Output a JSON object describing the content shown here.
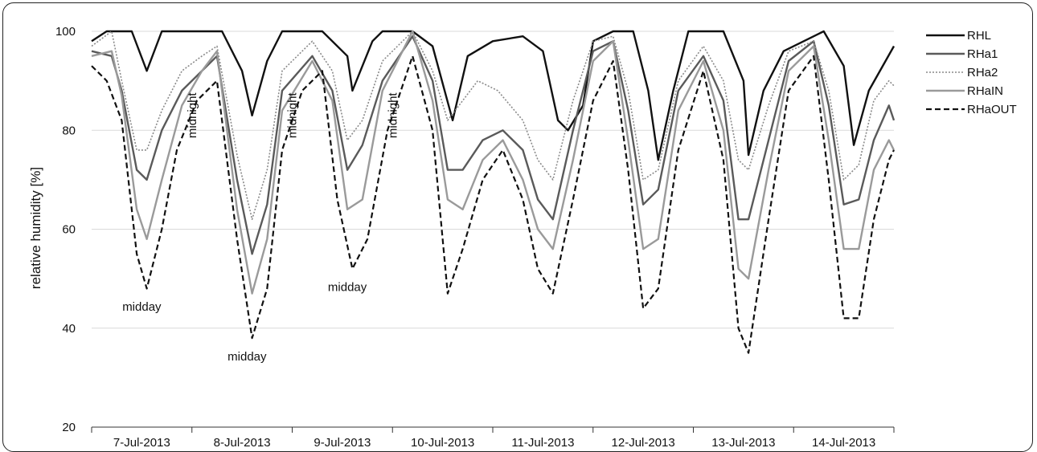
{
  "chart_data": {
    "type": "line",
    "title": "",
    "xlabel": "",
    "ylabel": "relative humidity [%]",
    "ylim": [
      20,
      100
    ],
    "yticks": [
      20,
      40,
      60,
      80,
      100
    ],
    "xlim": [
      0,
      8
    ],
    "x_tick_labels": [
      "7-Jul-2013",
      "8-Jul-2013",
      "9-Jul-2013",
      "10-Jul-2013",
      "11-Jul-2013",
      "12-Jul-2013",
      "13-Jul-2013",
      "14-Jul-2013"
    ],
    "grid": "horizontal",
    "legend_position": "right",
    "series": [
      {
        "name": "RHL",
        "color": "#111111",
        "style": "solid-thick",
        "points": [
          [
            0,
            98
          ],
          [
            0.15,
            100
          ],
          [
            0.4,
            100
          ],
          [
            0.55,
            92
          ],
          [
            0.7,
            100
          ],
          [
            1.3,
            100
          ],
          [
            1.5,
            92
          ],
          [
            1.6,
            83
          ],
          [
            1.75,
            94
          ],
          [
            1.9,
            100
          ],
          [
            2.3,
            100
          ],
          [
            2.55,
            95
          ],
          [
            2.6,
            88
          ],
          [
            2.8,
            98
          ],
          [
            2.9,
            100
          ],
          [
            3.2,
            100
          ],
          [
            3.4,
            97
          ],
          [
            3.6,
            82
          ],
          [
            3.75,
            95
          ],
          [
            4.0,
            98
          ],
          [
            4.3,
            99
          ],
          [
            4.5,
            96
          ],
          [
            4.65,
            82
          ],
          [
            4.75,
            80
          ],
          [
            4.9,
            85
          ],
          [
            5.0,
            98
          ],
          [
            5.2,
            100
          ],
          [
            5.4,
            100
          ],
          [
            5.55,
            88
          ],
          [
            5.65,
            74
          ],
          [
            5.8,
            88
          ],
          [
            5.95,
            100
          ],
          [
            6.3,
            100
          ],
          [
            6.5,
            90
          ],
          [
            6.55,
            75
          ],
          [
            6.7,
            88
          ],
          [
            6.9,
            96
          ],
          [
            7.3,
            100
          ],
          [
            7.5,
            93
          ],
          [
            7.6,
            77
          ],
          [
            7.75,
            88
          ],
          [
            8.0,
            97
          ]
        ]
      },
      {
        "name": "RHa1",
        "color": "#5a5a5a",
        "style": "solid-thick",
        "points": [
          [
            0,
            96
          ],
          [
            0.2,
            95
          ],
          [
            0.3,
            88
          ],
          [
            0.45,
            72
          ],
          [
            0.55,
            70
          ],
          [
            0.7,
            80
          ],
          [
            0.9,
            88
          ],
          [
            1.1,
            92
          ],
          [
            1.25,
            95
          ],
          [
            1.45,
            70
          ],
          [
            1.6,
            55
          ],
          [
            1.75,
            65
          ],
          [
            1.9,
            88
          ],
          [
            2.2,
            95
          ],
          [
            2.4,
            88
          ],
          [
            2.55,
            72
          ],
          [
            2.7,
            77
          ],
          [
            2.9,
            90
          ],
          [
            3.2,
            99
          ],
          [
            3.4,
            90
          ],
          [
            3.55,
            72
          ],
          [
            3.7,
            72
          ],
          [
            3.9,
            78
          ],
          [
            4.1,
            80
          ],
          [
            4.3,
            76
          ],
          [
            4.45,
            66
          ],
          [
            4.6,
            62
          ],
          [
            4.8,
            80
          ],
          [
            5.0,
            96
          ],
          [
            5.2,
            98
          ],
          [
            5.35,
            84
          ],
          [
            5.5,
            65
          ],
          [
            5.65,
            68
          ],
          [
            5.85,
            88
          ],
          [
            6.1,
            95
          ],
          [
            6.3,
            86
          ],
          [
            6.45,
            62
          ],
          [
            6.55,
            62
          ],
          [
            6.75,
            78
          ],
          [
            6.95,
            94
          ],
          [
            7.2,
            98
          ],
          [
            7.35,
            85
          ],
          [
            7.5,
            65
          ],
          [
            7.65,
            66
          ],
          [
            7.8,
            78
          ],
          [
            7.95,
            85
          ],
          [
            8.0,
            82
          ]
        ]
      },
      {
        "name": "RHa2",
        "color": "#8a8a8a",
        "style": "dotted",
        "points": [
          [
            0,
            97
          ],
          [
            0.2,
            100
          ],
          [
            0.3,
            90
          ],
          [
            0.45,
            76
          ],
          [
            0.55,
            76
          ],
          [
            0.7,
            84
          ],
          [
            0.9,
            92
          ],
          [
            1.1,
            95
          ],
          [
            1.25,
            97
          ],
          [
            1.45,
            75
          ],
          [
            1.6,
            62
          ],
          [
            1.75,
            72
          ],
          [
            1.9,
            92
          ],
          [
            2.2,
            98
          ],
          [
            2.4,
            92
          ],
          [
            2.55,
            78
          ],
          [
            2.7,
            82
          ],
          [
            2.9,
            94
          ],
          [
            3.2,
            100
          ],
          [
            3.4,
            92
          ],
          [
            3.55,
            82
          ],
          [
            3.7,
            86
          ],
          [
            3.85,
            90
          ],
          [
            4.05,
            88
          ],
          [
            4.3,
            82
          ],
          [
            4.45,
            74
          ],
          [
            4.6,
            70
          ],
          [
            4.8,
            86
          ],
          [
            5.0,
            98
          ],
          [
            5.2,
            99
          ],
          [
            5.35,
            88
          ],
          [
            5.5,
            70
          ],
          [
            5.65,
            72
          ],
          [
            5.85,
            90
          ],
          [
            6.1,
            97
          ],
          [
            6.3,
            90
          ],
          [
            6.45,
            74
          ],
          [
            6.55,
            72
          ],
          [
            6.75,
            85
          ],
          [
            6.95,
            96
          ],
          [
            7.2,
            98
          ],
          [
            7.35,
            88
          ],
          [
            7.5,
            70
          ],
          [
            7.65,
            73
          ],
          [
            7.8,
            86
          ],
          [
            7.95,
            90
          ],
          [
            8.0,
            89
          ]
        ]
      },
      {
        "name": "RHaIN",
        "color": "#9a9a9a",
        "style": "solid-thick",
        "points": [
          [
            0,
            95
          ],
          [
            0.2,
            96
          ],
          [
            0.3,
            87
          ],
          [
            0.45,
            64
          ],
          [
            0.55,
            58
          ],
          [
            0.7,
            70
          ],
          [
            0.9,
            85
          ],
          [
            1.1,
            92
          ],
          [
            1.25,
            96
          ],
          [
            1.45,
            64
          ],
          [
            1.6,
            47
          ],
          [
            1.75,
            58
          ],
          [
            1.9,
            84
          ],
          [
            2.2,
            94
          ],
          [
            2.4,
            86
          ],
          [
            2.55,
            64
          ],
          [
            2.7,
            66
          ],
          [
            2.9,
            88
          ],
          [
            3.2,
            100
          ],
          [
            3.4,
            86
          ],
          [
            3.55,
            66
          ],
          [
            3.7,
            64
          ],
          [
            3.9,
            74
          ],
          [
            4.1,
            78
          ],
          [
            4.3,
            70
          ],
          [
            4.45,
            60
          ],
          [
            4.6,
            56
          ],
          [
            4.8,
            74
          ],
          [
            5.0,
            94
          ],
          [
            5.2,
            98
          ],
          [
            5.35,
            78
          ],
          [
            5.5,
            56
          ],
          [
            5.65,
            58
          ],
          [
            5.85,
            84
          ],
          [
            6.1,
            94
          ],
          [
            6.3,
            80
          ],
          [
            6.45,
            52
          ],
          [
            6.55,
            50
          ],
          [
            6.75,
            72
          ],
          [
            6.95,
            92
          ],
          [
            7.2,
            97
          ],
          [
            7.35,
            78
          ],
          [
            7.5,
            56
          ],
          [
            7.65,
            56
          ],
          [
            7.8,
            72
          ],
          [
            7.95,
            78
          ],
          [
            8.0,
            76
          ]
        ]
      },
      {
        "name": "RHaOUT",
        "color": "#111111",
        "style": "dashed",
        "points": [
          [
            0,
            93
          ],
          [
            0.15,
            90
          ],
          [
            0.3,
            82
          ],
          [
            0.45,
            55
          ],
          [
            0.55,
            48
          ],
          [
            0.7,
            60
          ],
          [
            0.85,
            76
          ],
          [
            1.05,
            86
          ],
          [
            1.25,
            90
          ],
          [
            1.45,
            58
          ],
          [
            1.6,
            38
          ],
          [
            1.75,
            48
          ],
          [
            1.9,
            76
          ],
          [
            2.1,
            88
          ],
          [
            2.3,
            92
          ],
          [
            2.45,
            66
          ],
          [
            2.6,
            52
          ],
          [
            2.75,
            58
          ],
          [
            2.95,
            80
          ],
          [
            3.2,
            95
          ],
          [
            3.4,
            80
          ],
          [
            3.55,
            47
          ],
          [
            3.7,
            56
          ],
          [
            3.9,
            70
          ],
          [
            4.1,
            76
          ],
          [
            4.3,
            66
          ],
          [
            4.45,
            52
          ],
          [
            4.6,
            47
          ],
          [
            4.8,
            66
          ],
          [
            5.0,
            86
          ],
          [
            5.2,
            94
          ],
          [
            5.35,
            72
          ],
          [
            5.5,
            44
          ],
          [
            5.65,
            48
          ],
          [
            5.85,
            76
          ],
          [
            6.1,
            92
          ],
          [
            6.3,
            74
          ],
          [
            6.45,
            40
          ],
          [
            6.55,
            35
          ],
          [
            6.75,
            62
          ],
          [
            6.95,
            88
          ],
          [
            7.2,
            95
          ],
          [
            7.35,
            70
          ],
          [
            7.5,
            42
          ],
          [
            7.65,
            42
          ],
          [
            7.8,
            62
          ],
          [
            7.95,
            74
          ],
          [
            8.0,
            76
          ]
        ]
      }
    ],
    "annotations": [
      {
        "text": "midday",
        "x": 0.5,
        "y": 43.5
      },
      {
        "text": "midday",
        "x": 1.55,
        "y": 33.5
      },
      {
        "text": "midday",
        "x": 2.55,
        "y": 47.5
      },
      {
        "text": "midnight",
        "x": 1.0,
        "y": 83,
        "rotate": true
      },
      {
        "text": "midnight",
        "x": 2.0,
        "y": 83,
        "rotate": true
      },
      {
        "text": "midnight",
        "x": 3.0,
        "y": 83,
        "rotate": true
      }
    ]
  }
}
